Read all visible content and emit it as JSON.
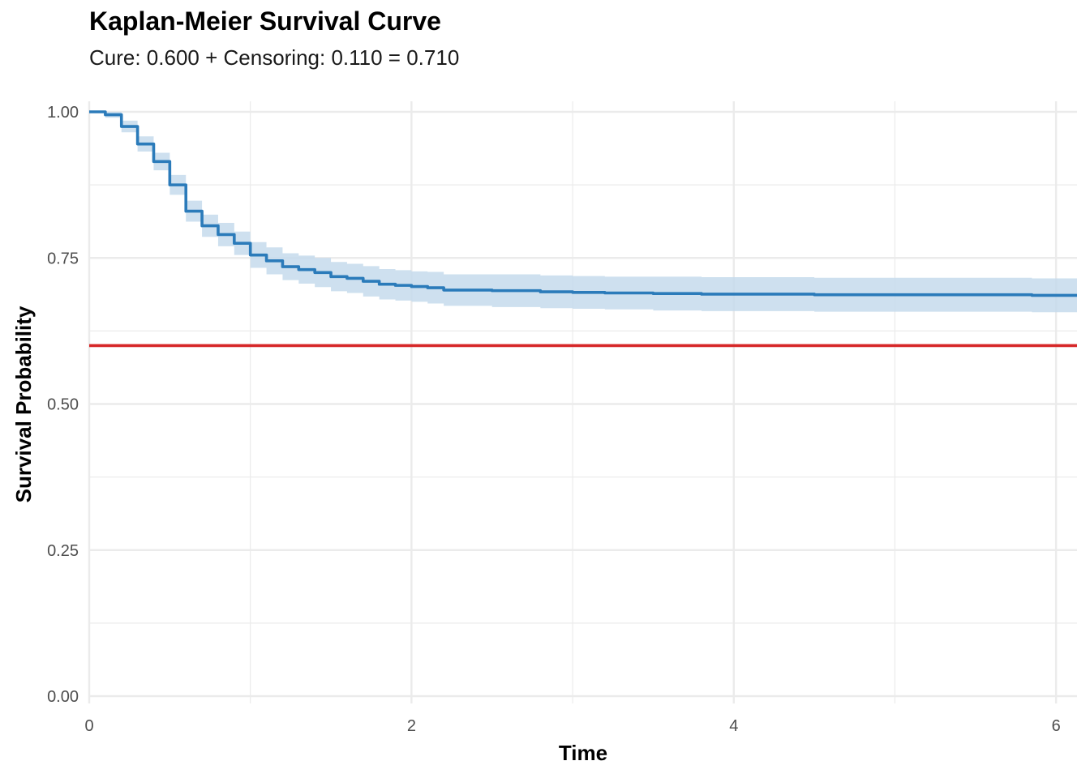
{
  "chart_data": {
    "type": "line",
    "title": "Kaplan-Meier Survival Curve",
    "subtitle": "Cure: 0.600 + Censoring: 0.110 = 0.710",
    "xlabel": "Time",
    "ylabel": "Survival Probability",
    "xlim": [
      0,
      6.13
    ],
    "ylim": [
      0,
      1.0
    ],
    "x_ticks": [
      0,
      2,
      4,
      6
    ],
    "y_ticks": [
      0.0,
      0.25,
      0.5,
      0.75,
      1.0
    ],
    "y_tick_labels": [
      "0.00",
      "0.25",
      "0.50",
      "0.75",
      "1.00"
    ],
    "grid": true,
    "colors": {
      "survival": "#2b7bba",
      "band": "#c6dbec",
      "cure": "#d62728",
      "grid": "#ebebeb"
    },
    "series": [
      {
        "type": "step",
        "x": [
          0,
          0.1,
          0.2,
          0.3,
          0.4,
          0.5,
          0.6,
          0.7,
          0.8,
          0.9,
          1.0,
          1.1,
          1.2,
          1.3,
          1.4,
          1.5,
          1.6,
          1.7,
          1.8,
          1.9,
          2.0,
          2.1,
          2.2,
          2.5,
          2.8,
          3.0,
          3.2,
          3.5,
          3.8,
          4.0,
          4.2,
          4.5,
          5.0,
          5.5,
          5.85,
          6.13
        ],
        "y": [
          1.0,
          0.995,
          0.975,
          0.945,
          0.915,
          0.875,
          0.83,
          0.805,
          0.79,
          0.775,
          0.755,
          0.745,
          0.735,
          0.73,
          0.725,
          0.718,
          0.715,
          0.71,
          0.705,
          0.703,
          0.701,
          0.699,
          0.695,
          0.694,
          0.692,
          0.691,
          0.69,
          0.689,
          0.688,
          0.688,
          0.688,
          0.687,
          0.687,
          0.687,
          0.686,
          0.686
        ],
        "lower": [
          1.0,
          0.99,
          0.965,
          0.932,
          0.9,
          0.858,
          0.812,
          0.786,
          0.77,
          0.755,
          0.733,
          0.722,
          0.712,
          0.706,
          0.7,
          0.693,
          0.69,
          0.684,
          0.679,
          0.677,
          0.675,
          0.672,
          0.668,
          0.666,
          0.664,
          0.663,
          0.662,
          0.66,
          0.659,
          0.659,
          0.659,
          0.658,
          0.658,
          0.658,
          0.657,
          0.657
        ],
        "upper": [
          1.0,
          1.0,
          0.985,
          0.958,
          0.93,
          0.892,
          0.848,
          0.824,
          0.81,
          0.795,
          0.777,
          0.768,
          0.758,
          0.754,
          0.75,
          0.743,
          0.74,
          0.736,
          0.731,
          0.729,
          0.727,
          0.726,
          0.722,
          0.722,
          0.72,
          0.719,
          0.718,
          0.718,
          0.717,
          0.717,
          0.717,
          0.716,
          0.716,
          0.716,
          0.715,
          0.715
        ]
      },
      {
        "type": "hline",
        "y": 0.6
      }
    ]
  }
}
